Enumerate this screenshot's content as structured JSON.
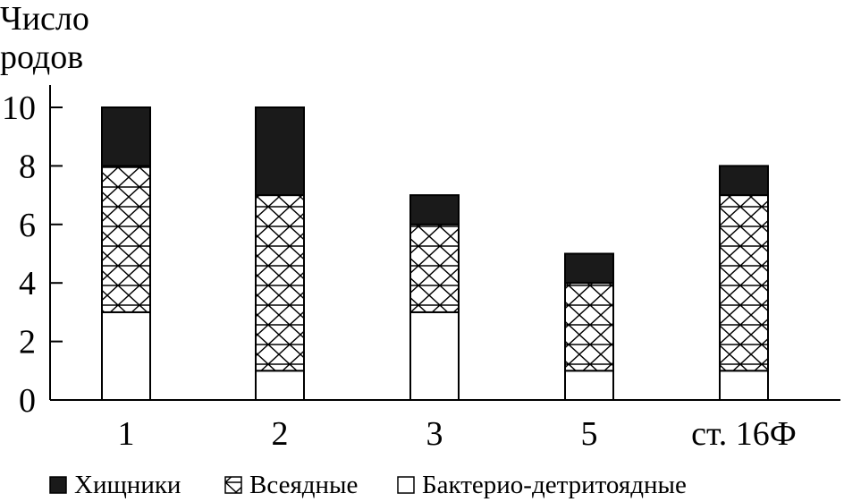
{
  "chart_data": {
    "type": "bar",
    "stacked": true,
    "ylabel_lines": [
      "Число",
      "родов"
    ],
    "xlabel": "",
    "categories": [
      "1",
      "2",
      "3",
      "5",
      "ст. 16Ф"
    ],
    "ylim": [
      0,
      10
    ],
    "yticks": [
      0,
      2,
      4,
      6,
      8,
      10
    ],
    "grid": false,
    "legend_position": "bottom",
    "series": [
      {
        "name": "Бактерио-детритоядные",
        "values": [
          3,
          1,
          3,
          1,
          1
        ],
        "fill": "white"
      },
      {
        "name": "Всеядные",
        "values": [
          5,
          6,
          3,
          3,
          6
        ],
        "fill": "crosshatch"
      },
      {
        "name": "Хищники",
        "values": [
          2,
          3,
          1,
          1,
          1
        ],
        "fill": "black"
      }
    ],
    "legend_order": [
      "Хищники",
      "Всеядные",
      "Бактерио-детритоядные"
    ]
  }
}
